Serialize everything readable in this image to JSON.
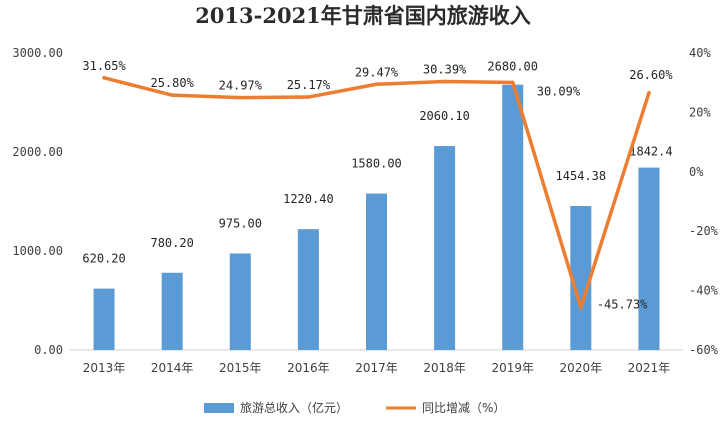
{
  "chart_data": {
    "type": "bar",
    "title": "2013-2021年甘肃省国内旅游收入",
    "categories": [
      "2013年",
      "2014年",
      "2015年",
      "2016年",
      "2017年",
      "2018年",
      "2019年",
      "2020年",
      "2021年"
    ],
    "series": [
      {
        "name": "旅游总收入（亿元）",
        "type": "bar",
        "axis": "left",
        "color": "#5b9bd5",
        "values": [
          620.2,
          780.2,
          975.0,
          1220.4,
          1580.0,
          2060.1,
          2680.0,
          1454.38,
          1842.4
        ],
        "labels": [
          "620.20",
          "780.20",
          "975.00",
          "1220.40",
          "1580.00",
          "2060.10",
          "2680.00",
          "1454.38",
          "1842.4"
        ]
      },
      {
        "name": "同比增减（%）",
        "type": "line",
        "axis": "right",
        "color": "#ed7d31",
        "values": [
          31.65,
          25.8,
          24.97,
          25.17,
          29.47,
          30.39,
          30.09,
          -45.73,
          26.6
        ],
        "labels": [
          "31.65%",
          "25.80%",
          "24.97%",
          "25.17%",
          "29.47%",
          "30.39%",
          "30.09%",
          "-45.73%",
          "26.60%"
        ]
      }
    ],
    "y_left": {
      "min": 0,
      "max": 3000,
      "ticks": [
        "0.00",
        "1000.00",
        "2000.00",
        "3000.00"
      ]
    },
    "y_right": {
      "min": -60,
      "max": 40,
      "ticks": [
        "-60%",
        "-40%",
        "-20%",
        "0%",
        "20%",
        "40%"
      ]
    },
    "grid": false,
    "legend_position": "bottom"
  }
}
